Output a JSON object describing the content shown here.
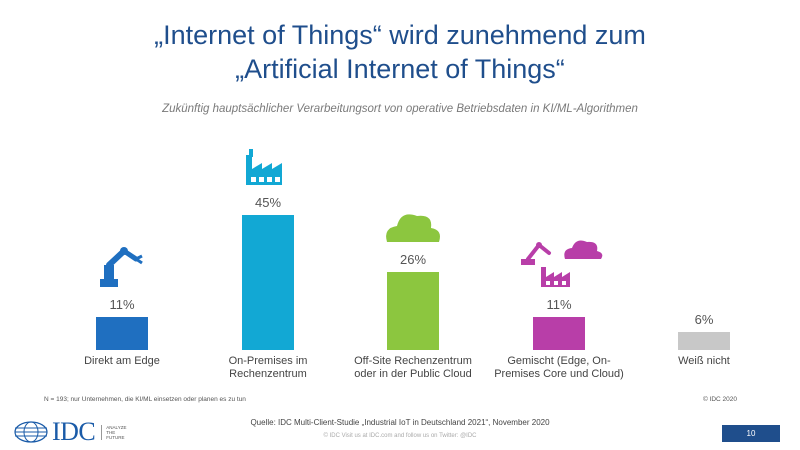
{
  "slide": {
    "title_line1": "„Internet of Things“ wird zunehmend zum",
    "title_line2": "„Artificial Internet of Things“",
    "footnote": "N = 193; nur Unternehmen, die KI/ML einsetzen oder planen es zu tun",
    "copyright": "© IDC 2020",
    "source": "Quelle: IDC Multi-Client-Studie „Industrial IoT in Deutschland 2021“, November 2020",
    "footer_line": "© IDC    Visit us at IDC.com and follow us on Twitter: @IDC",
    "logo_text": "IDC",
    "logo_tag": "ANALYZE THE FUTURE",
    "page_number": "10"
  },
  "chart_data": {
    "type": "bar",
    "subtitle": "Zukünftig hauptsächlicher Verarbeitungsort von operative Betriebsdaten in KI/ML-Algorithmen",
    "categories": [
      [
        "Direkt am Edge"
      ],
      [
        "On-Premises im",
        "Rechenzentrum"
      ],
      [
        "Off-Site Rechenzentrum",
        "oder in der Public Cloud"
      ],
      [
        "Gemischt (Edge, On-",
        "Premises Core und Cloud)"
      ],
      [
        "Weiß nicht"
      ]
    ],
    "values": [
      11,
      45,
      26,
      11,
      6
    ],
    "value_labels": [
      "11%",
      "45%",
      "26%",
      "11%",
      "6%"
    ],
    "colors": [
      "#1f6fc0",
      "#12a8d4",
      "#8cc63f",
      "#b83ea8",
      "#c8c8c8"
    ],
    "icons": [
      "robot-arm-icon",
      "factory-icon",
      "cloud-icon",
      "robot-factory-cloud-icon",
      ""
    ],
    "ylim": [
      0,
      45
    ],
    "grid": false,
    "legend": "none"
  }
}
